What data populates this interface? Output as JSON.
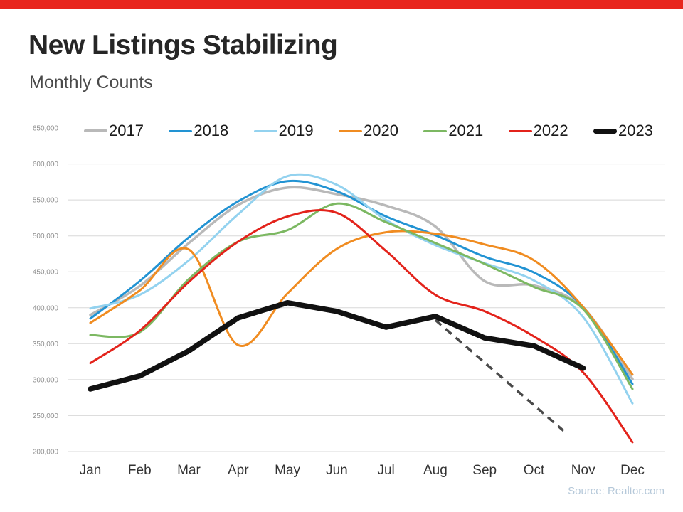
{
  "page": {
    "title": "New Listings Stabilizing",
    "subtitle": "Monthly Counts",
    "source": "Source: Realtor.com",
    "accent_bar_color": "#e8251d"
  },
  "chart_data": {
    "type": "line",
    "title": "New Listings Stabilizing",
    "subtitle": "Monthly Counts",
    "categories": [
      "Jan",
      "Feb",
      "Mar",
      "Apr",
      "May",
      "Jun",
      "Jul",
      "Aug",
      "Sep",
      "Oct",
      "Nov",
      "Dec"
    ],
    "ylim": [
      200000,
      650000
    ],
    "yticks": [
      200000,
      250000,
      300000,
      350000,
      400000,
      450000,
      500000,
      550000,
      600000,
      650000
    ],
    "ytick_step": 50000,
    "grid": true,
    "legend_position": "top",
    "series": [
      {
        "name": "2017",
        "color": "#b9b9b9",
        "width": 3.5,
        "smooth": true,
        "values": [
          390000,
          430000,
          490000,
          543000,
          567000,
          558000,
          542000,
          513000,
          437000,
          431000,
          400000,
          301000
        ]
      },
      {
        "name": "2018",
        "color": "#2293d3",
        "width": 3,
        "smooth": true,
        "values": [
          385000,
          437000,
          498000,
          548000,
          576000,
          562000,
          527000,
          501000,
          471000,
          449000,
          401000,
          294000
        ]
      },
      {
        "name": "2019",
        "color": "#93d2ef",
        "width": 3,
        "smooth": true,
        "values": [
          399000,
          418000,
          466000,
          530000,
          583000,
          571000,
          522000,
          487000,
          462000,
          438000,
          387000,
          267000
        ]
      },
      {
        "name": "2020",
        "color": "#f08c21",
        "width": 3,
        "smooth": true,
        "values": [
          379000,
          424000,
          481000,
          348000,
          420000,
          482000,
          505000,
          503000,
          488000,
          466000,
          401000,
          307000
        ]
      },
      {
        "name": "2021",
        "color": "#7cb862",
        "width": 3,
        "smooth": true,
        "values": [
          362000,
          366000,
          440000,
          492000,
          508000,
          545000,
          519000,
          490000,
          461000,
          429000,
          398000,
          287000
        ]
      },
      {
        "name": "2022",
        "color": "#e3231b",
        "width": 3,
        "smooth": true,
        "values": [
          323000,
          368000,
          436000,
          492000,
          527000,
          532000,
          479000,
          418000,
          395000,
          360000,
          310000,
          213000
        ]
      },
      {
        "name": "2023",
        "color": "#111111",
        "width": 7.5,
        "smooth": false,
        "values": [
          287000,
          305000,
          340000,
          386000,
          407000,
          395000,
          373000,
          388000,
          358000,
          347000,
          316000,
          null
        ]
      }
    ],
    "trend_line": {
      "name": "dashed-projection",
      "color": "#4a4a4a",
      "width": 3.5,
      "dash": "11 8",
      "points": [
        {
          "x": 7,
          "y": 383000
        },
        {
          "x": 9.6,
          "y": 229000
        }
      ]
    }
  }
}
